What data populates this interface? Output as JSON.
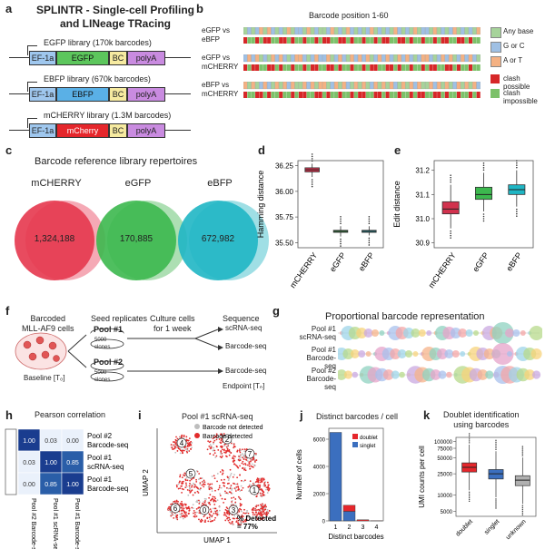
{
  "panels": {
    "a": "a",
    "b": "b",
    "c": "c",
    "d": "d",
    "e": "e",
    "f": "f",
    "g": "g",
    "h": "h",
    "i": "i",
    "j": "j",
    "k": "k"
  },
  "a": {
    "title_line1": "SPLINTR - Single-cell Profiling",
    "title_line2": "and LINeage TRacing",
    "libraries": [
      {
        "name": "EGFP library (170k barcodes)",
        "promoter": "EF-1a",
        "gene": "EGFP",
        "bc": "BC",
        "polya": "polyA",
        "color": "#5cc65c"
      },
      {
        "name": "EBFP library (670k barcodes)",
        "promoter": "EF-1a",
        "gene": "EBFP",
        "bc": "BC",
        "polya": "polyA",
        "color": "#5ab0e6"
      },
      {
        "name": "mCHERRY library (1.3M barcodes)",
        "promoter": "EF-1a",
        "gene": "mCherry",
        "bc": "BC",
        "polya": "polyA",
        "color": "#e5262b"
      }
    ]
  },
  "b": {
    "title": "Barcode position 1-60",
    "rows": [
      {
        "top": "eGFP vs",
        "bottom": "eBFP"
      },
      {
        "top": "eGFP vs",
        "bottom": "mCHERRY"
      },
      {
        "top": "eBFP vs",
        "bottom": "mCHERRY"
      }
    ],
    "legend1": [
      {
        "label": "Any base",
        "color": "#a6d39a"
      },
      {
        "label": "G or C",
        "color": "#9fc0e4"
      },
      {
        "label": "A or T",
        "color": "#f4b183"
      }
    ],
    "legend2": [
      {
        "label": "clash possible",
        "color": "#d62728"
      },
      {
        "label": "clash impossible",
        "color": "#7cc16a"
      }
    ]
  },
  "c": {
    "title": "Barcode reference library repertoires",
    "circles": [
      {
        "name": "mCHERRY",
        "count": "1,324,188",
        "color": "#e5374e",
        "color2": "#f39aa8"
      },
      {
        "name": "eGFP",
        "count": "170,885",
        "color": "#3cb84e",
        "color2": "#9fd9a6"
      },
      {
        "name": "eBFP",
        "count": "672,982",
        "color": "#1fb6c4",
        "color2": "#8ed9e0"
      }
    ]
  },
  "d": {
    "ylabel": "Hamming distance",
    "yticks": [
      "36.25",
      "36.00",
      "35.75",
      "35.50"
    ],
    "categories": [
      "mCHERRY",
      "eGFP",
      "eBFP"
    ]
  },
  "e": {
    "ylabel": "Edit distance",
    "yticks": [
      "31.2",
      "31.1",
      "31.0",
      "30.9"
    ],
    "categories": [
      "mCHERRY",
      "eGFP",
      "eBFP"
    ]
  },
  "f": {
    "barcoded": "Barcoded",
    "cells": "MLL-AF9 cells",
    "seed": "Seed replicates",
    "culture1": "Culture cells",
    "culture2": "for 1 week",
    "sequence": "Sequence",
    "pool1": "Pool #1",
    "pool2": "Pool #2",
    "clones": "5000",
    "clones2": "clones",
    "baseline": "Baseline [T₀]",
    "endpoint": "Endpoint [Tₙ]",
    "seq1": "scRNA-seq",
    "seq2": "Barcode-seq",
    "seq3": "Barcode-seq"
  },
  "g": {
    "title": "Proportional barcode representation",
    "rows": [
      {
        "l1": "Pool #1",
        "l2": "scRNA-seq"
      },
      {
        "l1": "Pool #1",
        "l2": "Barcode-seq"
      },
      {
        "l1": "Pool #2",
        "l2": "Barcode-seq"
      }
    ]
  },
  "h": {
    "title": "Pearson correlation",
    "rows": [
      {
        "l1": "Pool #2",
        "l2": "Barcode-seq",
        "values": [
          "1.00",
          "0.03",
          "0.00"
        ]
      },
      {
        "l1": "Pool #1",
        "l2": "scRNA-seq",
        "values": [
          "0.03",
          "1.00",
          "0.85"
        ]
      },
      {
        "l1": "Pool #1",
        "l2": "Barcode-seq",
        "values": [
          "0.00",
          "0.85",
          "1.00"
        ]
      }
    ],
    "cols": [
      "Pool #2 Barcode-seq",
      "Pool #1 scRNA-seq",
      "Pool #1 Barcode-seq"
    ]
  },
  "i": {
    "title": "Pool #1 scRNA-seq",
    "legend_not": "Barcode not detected",
    "legend_det": "Barcode detected",
    "xlabel": "UMAP 1",
    "ylabel": "UMAP 2",
    "clusters": [
      "4",
      "2",
      "7",
      "5",
      "1",
      "6",
      "0",
      "3"
    ],
    "pct_label": "% Detected",
    "pct_value": "= 77%"
  },
  "j": {
    "title": "Distinct barcodes / cell",
    "ylabel": "Number of cells",
    "xlabel": "Distinct barcodes",
    "legend": [
      {
        "label": "doublet",
        "color": "#e5262b"
      },
      {
        "label": "singlet",
        "color": "#3b6fbf"
      }
    ]
  },
  "k": {
    "title1": "Doublet identification",
    "title2": "using barcodes",
    "ylabel": "UMI counts per cell",
    "categories": [
      "doublet",
      "singlet",
      "unknown"
    ]
  },
  "chart_data": [
    {
      "type": "box",
      "panel": "d",
      "ylabel": "Hamming distance",
      "ylim": [
        35.45,
        36.3
      ],
      "categories": [
        "mCHERRY",
        "eGFP",
        "eBFP"
      ],
      "boxes": [
        {
          "name": "mCHERRY",
          "q1": 36.19,
          "median": 36.21,
          "q3": 36.23,
          "whisker_low": 36.14,
          "whisker_high": 36.27,
          "color": "#d1314d"
        },
        {
          "name": "eGFP",
          "q1": 35.6,
          "median": 35.61,
          "q3": 35.62,
          "whisker_low": 35.56,
          "whisker_high": 35.66,
          "color": "#3cb84e"
        },
        {
          "name": "eBFP",
          "q1": 35.6,
          "median": 35.61,
          "q3": 35.62,
          "whisker_low": 35.57,
          "whisker_high": 35.66,
          "color": "#1fb6c4"
        }
      ]
    },
    {
      "type": "box",
      "panel": "e",
      "ylabel": "Edit distance",
      "ylim": [
        30.88,
        31.24
      ],
      "categories": [
        "mCHERRY",
        "eGFP",
        "eBFP"
      ],
      "boxes": [
        {
          "name": "mCHERRY",
          "q1": 31.02,
          "median": 31.04,
          "q3": 31.07,
          "whisker_low": 30.96,
          "whisker_high": 31.14,
          "color": "#d1314d"
        },
        {
          "name": "eGFP",
          "q1": 31.08,
          "median": 31.1,
          "q3": 31.13,
          "whisker_low": 31.03,
          "whisker_high": 31.19,
          "color": "#3cb84e"
        },
        {
          "name": "eBFP",
          "q1": 31.1,
          "median": 31.12,
          "q3": 31.14,
          "whisker_low": 31.05,
          "whisker_high": 31.2,
          "color": "#1fb6c4"
        }
      ]
    },
    {
      "type": "bar",
      "panel": "j",
      "title": "Distinct barcodes / cell",
      "xlabel": "Distinct barcodes",
      "ylabel": "Number of cells",
      "categories": [
        "1",
        "2",
        "3",
        "4"
      ],
      "yticks": [
        0,
        2000,
        4000,
        6000
      ],
      "ylim": [
        0,
        6800
      ],
      "series": [
        {
          "name": "singlet",
          "values": [
            6500,
            700,
            0,
            0
          ],
          "color": "#3b6fbf"
        },
        {
          "name": "doublet",
          "values": [
            0,
            450,
            80,
            10
          ],
          "color": "#e5262b"
        }
      ]
    },
    {
      "type": "box",
      "panel": "k",
      "title": "Doublet identification using barcodes",
      "ylabel": "UMI counts per cell",
      "yscale": "log",
      "yticks": [
        "100000",
        "75000",
        "50000",
        "25000",
        "10000",
        "5000"
      ],
      "categories": [
        "doublet",
        "singlet",
        "unknown"
      ],
      "boxes": [
        {
          "name": "doublet",
          "q1": 27000,
          "median": 33000,
          "q3": 40000,
          "color": "#e5262b"
        },
        {
          "name": "singlet",
          "q1": 20000,
          "median": 25000,
          "q3": 30000,
          "color": "#3b6fbf"
        },
        {
          "name": "unknown",
          "q1": 15000,
          "median": 19000,
          "q3": 23000,
          "color": "#b0b0b0"
        }
      ]
    },
    {
      "type": "heatmap",
      "panel": "h",
      "title": "Pearson correlation",
      "values": [
        [
          1.0,
          0.03,
          0.0
        ],
        [
          0.03,
          1.0,
          0.85
        ],
        [
          0.0,
          0.85,
          1.0
        ]
      ]
    }
  ]
}
